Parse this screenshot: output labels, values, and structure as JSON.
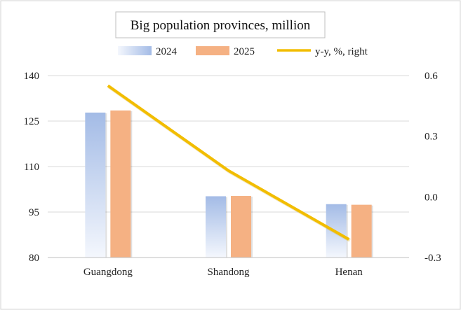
{
  "chart_data": {
    "type": "bar",
    "title": "Big population provinces, million",
    "categories": [
      "Guangdong",
      "Shandong",
      "Henan"
    ],
    "series": [
      {
        "name": "2024",
        "kind": "bar",
        "axis": "left",
        "values": [
          127.8,
          100.2,
          97.6
        ],
        "color": "#a9c0e8"
      },
      {
        "name": "2025",
        "kind": "bar",
        "axis": "left",
        "values": [
          128.5,
          100.3,
          97.4
        ],
        "color": "#f5b183"
      },
      {
        "name": "y-y, %, right",
        "kind": "line",
        "axis": "right",
        "values": [
          0.55,
          0.13,
          -0.21
        ],
        "color": "#f2bd00"
      }
    ],
    "y_left": {
      "min": 80,
      "max": 140,
      "ticks": [
        "80",
        "95",
        "110",
        "125",
        "140"
      ]
    },
    "y_right": {
      "min": -0.3,
      "max": 0.6,
      "ticks": [
        "-0.3",
        "0.0",
        "0.3",
        "0.6"
      ]
    },
    "grid": true,
    "legend_position": "top"
  }
}
